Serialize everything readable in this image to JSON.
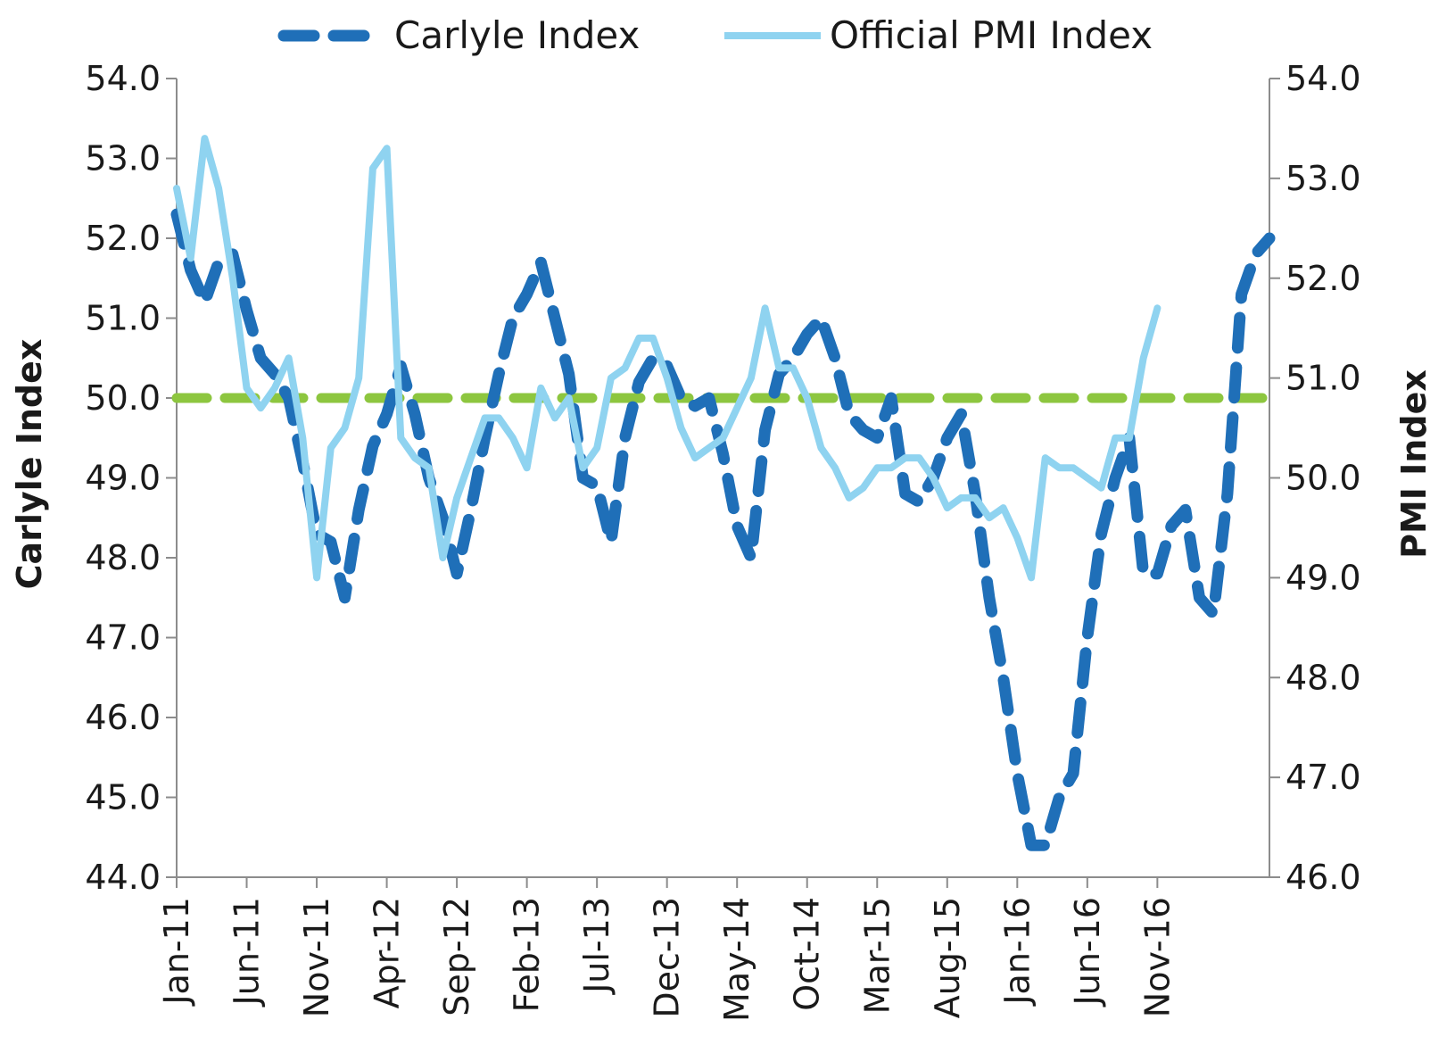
{
  "chart_data": {
    "type": "line",
    "title": "",
    "xlabel": "",
    "ylabel": "Carlyle Index",
    "y2label": "PMI Index",
    "ylim": [
      44,
      54
    ],
    "y2lim": [
      46,
      54
    ],
    "yticks": [
      "44.0",
      "45.0",
      "46.0",
      "47.0",
      "48.0",
      "49.0",
      "50.0",
      "51.0",
      "52.0",
      "53.0",
      "54.0"
    ],
    "y2ticks": [
      "46.0",
      "47.0",
      "48.0",
      "49.0",
      "50.0",
      "51.0",
      "52.0",
      "53.0",
      "54.0"
    ],
    "xticks": [
      "Jan-11",
      "Jun-11",
      "Nov-11",
      "Apr-12",
      "Sep-12",
      "Feb-13",
      "Jul-13",
      "Dec-13",
      "May-14",
      "Oct-14",
      "Mar-15",
      "Aug-15",
      "Jan-16",
      "Jun-16",
      "Nov-16"
    ],
    "legend_position": "top",
    "grid": false,
    "reference_line": {
      "axis": "left",
      "value": 50.0,
      "color": "#8dc63f"
    },
    "series": [
      {
        "name": "Carlyle Index",
        "axis": "left",
        "style": "dashed",
        "color": "#1f6fb8",
        "values": [
          52.3,
          51.6,
          51.2,
          51.7,
          51.8,
          51.1,
          50.5,
          50.3,
          50.0,
          49.2,
          48.3,
          48.2,
          47.5,
          48.6,
          49.4,
          49.8,
          50.4,
          49.8,
          49.0,
          48.5,
          47.8,
          48.6,
          49.5,
          50.3,
          51.0,
          51.3,
          51.7,
          51.0,
          50.3,
          49.0,
          48.9,
          48.2,
          49.5,
          50.2,
          50.5,
          50.4,
          50.0,
          49.9,
          50.0,
          49.3,
          48.4,
          48.0,
          49.6,
          50.3,
          50.5,
          50.8,
          51.0,
          50.5,
          49.8,
          49.6,
          49.5,
          50.0,
          48.8,
          48.7,
          49.0,
          49.5,
          49.8,
          48.8,
          47.5,
          46.5,
          45.3,
          44.4,
          44.4,
          45.0,
          45.3,
          47.0,
          48.3,
          49.0,
          49.5,
          47.8,
          47.8,
          48.4,
          48.6,
          47.5,
          47.3,
          48.8,
          51.3,
          51.8,
          52.0
        ]
      },
      {
        "name": "Official PMI Index",
        "axis": "right",
        "style": "solid",
        "color": "#8fd3f0",
        "values": [
          52.9,
          52.2,
          53.4,
          52.9,
          52.0,
          50.9,
          50.7,
          50.9,
          51.2,
          50.4,
          49.0,
          50.3,
          50.5,
          51.0,
          53.1,
          53.3,
          50.4,
          50.2,
          50.1,
          49.2,
          49.8,
          50.2,
          50.6,
          50.6,
          50.4,
          50.1,
          50.9,
          50.6,
          50.8,
          50.1,
          50.3,
          51.0,
          51.1,
          51.4,
          51.4,
          51.0,
          50.5,
          50.2,
          50.3,
          50.4,
          50.7,
          51.0,
          51.7,
          51.1,
          51.1,
          50.8,
          50.3,
          50.1,
          49.8,
          49.9,
          50.1,
          50.1,
          50.2,
          50.2,
          50.0,
          49.7,
          49.8,
          49.8,
          49.6,
          49.7,
          49.4,
          49.0,
          50.2,
          50.1,
          50.1,
          50.0,
          49.9,
          50.4,
          50.4,
          51.2,
          51.7
        ]
      }
    ]
  }
}
